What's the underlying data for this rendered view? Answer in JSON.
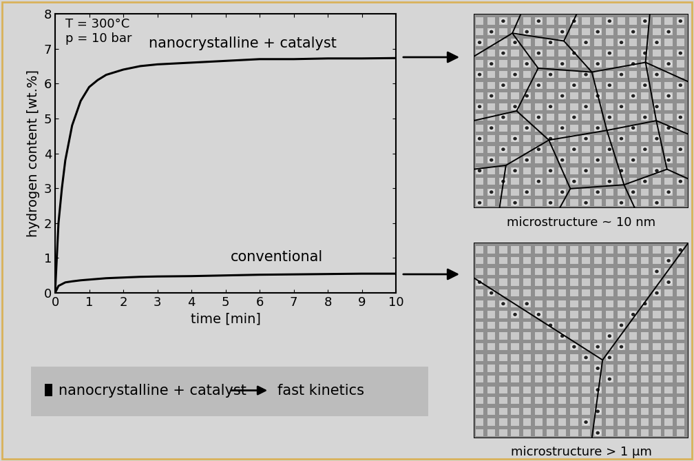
{
  "chart_data": {
    "type": "line",
    "xlabel": "time [min]",
    "ylabel": "hydrogen content [wt.%]",
    "annotations": [
      "T = 300°C",
      "p = 10 bar"
    ],
    "x": [
      0,
      0.1,
      0.2,
      0.3,
      0.5,
      0.75,
      1,
      1.25,
      1.5,
      2,
      2.5,
      3,
      4,
      5,
      6,
      7,
      8,
      9,
      10
    ],
    "series": [
      {
        "name": "nanocrystalline + catalyst",
        "color": "#000000",
        "line_style": "solid",
        "values": [
          0,
          2.0,
          3.0,
          3.8,
          4.8,
          5.5,
          5.9,
          6.1,
          6.25,
          6.4,
          6.5,
          6.55,
          6.6,
          6.65,
          6.7,
          6.7,
          6.72,
          6.72,
          6.73
        ]
      },
      {
        "name": "conventional",
        "color": "#000000",
        "line_style": "solid",
        "values": [
          0,
          0.2,
          0.25,
          0.3,
          0.33,
          0.36,
          0.38,
          0.4,
          0.42,
          0.44,
          0.46,
          0.47,
          0.48,
          0.5,
          0.52,
          0.53,
          0.54,
          0.55,
          0.55
        ]
      }
    ],
    "xlim": [
      0,
      10
    ],
    "ylim": [
      0,
      8
    ],
    "xticks": [
      0,
      1,
      2,
      3,
      4,
      5,
      6,
      7,
      8,
      9,
      10
    ],
    "yticks": [
      0,
      1,
      2,
      3,
      4,
      5,
      6,
      7,
      8
    ],
    "grid": false
  },
  "panels": [
    {
      "label": "microstructure ~ 10 nm"
    },
    {
      "label": "microstructure > 1 µm"
    }
  ],
  "key_box": {
    "text": "nanocrystalline + catalyst",
    "result": "fast kinetics"
  }
}
